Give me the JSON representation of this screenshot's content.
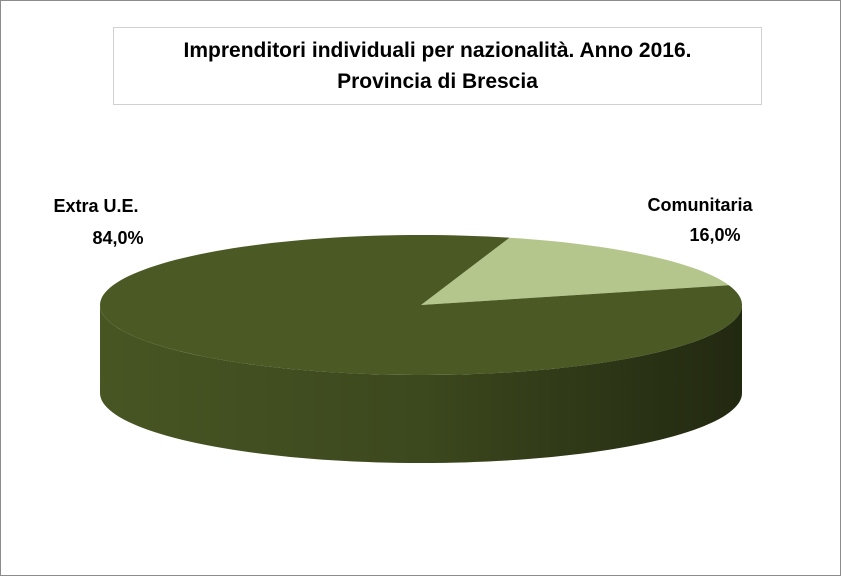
{
  "chart_data": {
    "type": "pie",
    "title": "Imprenditori individuali per nazionalità. Anno 2016. Provincia di Brescia",
    "categories": [
      "Comunitaria",
      "Extra U.E."
    ],
    "values": [
      16,
      84
    ],
    "value_labels": [
      "16,0%",
      "84,0%"
    ],
    "colors": [
      "#b5c68c",
      "#4b5a25"
    ]
  }
}
